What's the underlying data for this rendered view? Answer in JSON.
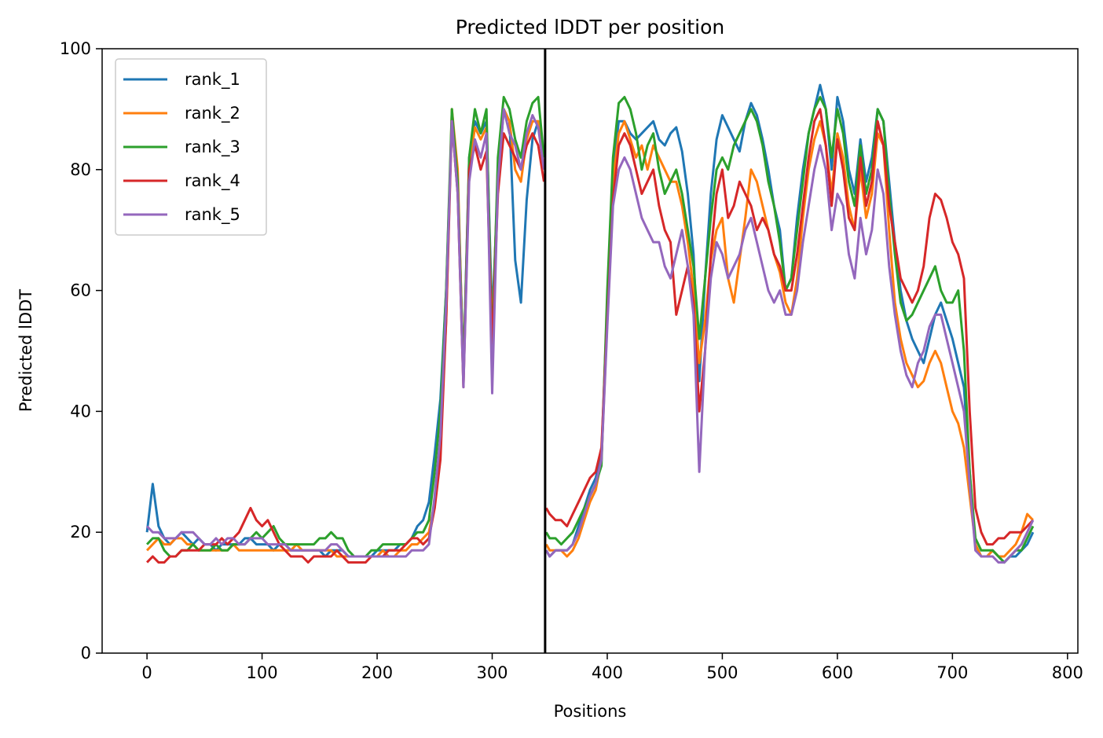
{
  "chart_data": {
    "type": "line",
    "title": "Predicted lDDT per position",
    "xlabel": "Positions",
    "ylabel": "Predicted lDDT",
    "xlim": [
      -39,
      809
    ],
    "ylim": [
      0,
      100
    ],
    "xticks": [
      0,
      100,
      200,
      300,
      400,
      500,
      600,
      700,
      800
    ],
    "yticks": [
      0,
      20,
      40,
      60,
      80,
      100
    ],
    "grid": false,
    "legend_position": "top-left",
    "vline_x": 346,
    "x": [
      0,
      5,
      10,
      15,
      20,
      25,
      30,
      35,
      40,
      45,
      50,
      55,
      60,
      65,
      70,
      75,
      80,
      85,
      90,
      95,
      100,
      105,
      110,
      115,
      120,
      125,
      130,
      135,
      140,
      145,
      150,
      155,
      160,
      165,
      170,
      175,
      180,
      185,
      190,
      195,
      200,
      205,
      210,
      215,
      220,
      225,
      230,
      235,
      240,
      245,
      250,
      255,
      260,
      265,
      270,
      275,
      280,
      285,
      290,
      295,
      300,
      305,
      310,
      315,
      320,
      325,
      330,
      335,
      340,
      345,
      347,
      350,
      355,
      360,
      365,
      370,
      375,
      380,
      385,
      390,
      395,
      400,
      405,
      410,
      415,
      420,
      425,
      430,
      435,
      440,
      445,
      450,
      455,
      460,
      465,
      470,
      475,
      480,
      485,
      490,
      495,
      500,
      505,
      510,
      515,
      520,
      525,
      530,
      535,
      540,
      545,
      550,
      555,
      560,
      565,
      570,
      575,
      580,
      585,
      590,
      595,
      600,
      605,
      610,
      615,
      620,
      625,
      630,
      635,
      640,
      645,
      650,
      655,
      660,
      665,
      670,
      675,
      680,
      685,
      690,
      695,
      700,
      705,
      710,
      715,
      720,
      725,
      730,
      735,
      740,
      745,
      750,
      755,
      760,
      765,
      770
    ],
    "series": [
      {
        "name": "rank_1",
        "color": "#1f77b4",
        "values": [
          20,
          28,
          21,
          19,
          18,
          19,
          20,
          19,
          18,
          19,
          18,
          18,
          17,
          18,
          18,
          18,
          18,
          19,
          19,
          18,
          18,
          18,
          17,
          18,
          18,
          17,
          17,
          17,
          17,
          17,
          17,
          16,
          17,
          17,
          17,
          16,
          16,
          16,
          16,
          16,
          17,
          17,
          17,
          17,
          18,
          18,
          19,
          21,
          22,
          25,
          33,
          42,
          60,
          88,
          78,
          47,
          82,
          88,
          86,
          88,
          55,
          78,
          90,
          88,
          65,
          58,
          75,
          85,
          88,
          80,
          17,
          16,
          17,
          17,
          17,
          18,
          21,
          24,
          27,
          29,
          33,
          58,
          80,
          88,
          88,
          86,
          85,
          86,
          87,
          88,
          85,
          84,
          86,
          87,
          83,
          76,
          66,
          45,
          62,
          76,
          85,
          89,
          87,
          85,
          83,
          88,
          91,
          89,
          85,
          80,
          74,
          70,
          60,
          62,
          72,
          80,
          86,
          90,
          94,
          90,
          80,
          92,
          88,
          80,
          76,
          85,
          78,
          82,
          90,
          88,
          78,
          68,
          60,
          55,
          52,
          50,
          48,
          52,
          56,
          58,
          55,
          52,
          48,
          44,
          30,
          18,
          16,
          16,
          17,
          16,
          15,
          16,
          16,
          17,
          18,
          20
        ]
      },
      {
        "name": "rank_2",
        "color": "#ff7f0e",
        "values": [
          17,
          18,
          19,
          18,
          18,
          19,
          19,
          18,
          18,
          17,
          17,
          17,
          17,
          17,
          17,
          18,
          17,
          17,
          17,
          17,
          17,
          17,
          17,
          17,
          17,
          17,
          18,
          17,
          17,
          17,
          17,
          17,
          17,
          16,
          16,
          16,
          16,
          16,
          16,
          16,
          16,
          17,
          16,
          16,
          17,
          17,
          18,
          18,
          19,
          20,
          25,
          35,
          55,
          90,
          80,
          46,
          80,
          87,
          85,
          87,
          52,
          80,
          90,
          88,
          80,
          78,
          85,
          88,
          88,
          80,
          18,
          17,
          17,
          17,
          16,
          17,
          19,
          22,
          25,
          27,
          32,
          55,
          78,
          86,
          88,
          85,
          82,
          84,
          80,
          84,
          82,
          80,
          78,
          78,
          74,
          68,
          60,
          48,
          55,
          65,
          70,
          72,
          62,
          58,
          65,
          72,
          80,
          78,
          74,
          70,
          66,
          63,
          58,
          56,
          62,
          72,
          80,
          85,
          88,
          84,
          76,
          86,
          82,
          74,
          70,
          80,
          72,
          76,
          86,
          84,
          70,
          58,
          52,
          48,
          46,
          44,
          45,
          48,
          50,
          48,
          44,
          40,
          38,
          34,
          26,
          18,
          16,
          16,
          17,
          16,
          16,
          17,
          18,
          20,
          23,
          22
        ]
      },
      {
        "name": "rank_3",
        "color": "#2ca02c",
        "values": [
          18,
          19,
          19,
          17,
          16,
          16,
          17,
          17,
          18,
          17,
          17,
          17,
          18,
          17,
          17,
          18,
          18,
          18,
          19,
          20,
          19,
          20,
          21,
          19,
          18,
          18,
          18,
          18,
          18,
          18,
          19,
          19,
          20,
          19,
          19,
          17,
          16,
          16,
          16,
          17,
          17,
          18,
          18,
          18,
          18,
          18,
          19,
          20,
          20,
          22,
          30,
          40,
          60,
          90,
          78,
          46,
          82,
          90,
          86,
          90,
          50,
          82,
          92,
          90,
          85,
          82,
          88,
          91,
          92,
          82,
          20,
          19,
          19,
          18,
          19,
          20,
          22,
          24,
          26,
          28,
          31,
          60,
          82,
          91,
          92,
          90,
          86,
          80,
          84,
          86,
          80,
          76,
          78,
          80,
          76,
          70,
          64,
          52,
          62,
          72,
          80,
          82,
          80,
          84,
          86,
          88,
          90,
          88,
          84,
          78,
          74,
          68,
          60,
          62,
          70,
          78,
          86,
          90,
          92,
          90,
          82,
          90,
          86,
          78,
          74,
          84,
          76,
          80,
          90,
          88,
          76,
          66,
          58,
          55,
          56,
          58,
          60,
          62,
          64,
          60,
          58,
          58,
          60,
          50,
          30,
          19,
          17,
          17,
          17,
          16,
          15,
          16,
          17,
          17,
          19,
          21
        ]
      },
      {
        "name": "rank_4",
        "color": "#d62728",
        "values": [
          15,
          16,
          15,
          15,
          16,
          16,
          17,
          17,
          17,
          17,
          18,
          18,
          18,
          19,
          18,
          19,
          20,
          22,
          24,
          22,
          21,
          22,
          20,
          18,
          17,
          16,
          16,
          16,
          15,
          16,
          16,
          16,
          16,
          17,
          16,
          15,
          15,
          15,
          15,
          16,
          16,
          16,
          17,
          17,
          17,
          18,
          19,
          19,
          18,
          19,
          24,
          32,
          55,
          88,
          76,
          44,
          80,
          84,
          80,
          83,
          50,
          76,
          86,
          84,
          82,
          80,
          84,
          86,
          84,
          78,
          24,
          23,
          22,
          22,
          21,
          23,
          25,
          27,
          29,
          30,
          34,
          55,
          75,
          84,
          86,
          84,
          80,
          76,
          78,
          80,
          74,
          70,
          68,
          56,
          60,
          64,
          58,
          40,
          50,
          66,
          76,
          80,
          72,
          74,
          78,
          76,
          74,
          70,
          72,
          70,
          66,
          64,
          60,
          60,
          66,
          74,
          82,
          88,
          90,
          84,
          74,
          85,
          80,
          72,
          70,
          82,
          74,
          78,
          88,
          84,
          74,
          68,
          62,
          60,
          58,
          60,
          64,
          72,
          76,
          75,
          72,
          68,
          66,
          62,
          40,
          24,
          20,
          18,
          18,
          19,
          19,
          20,
          20,
          20,
          21,
          22
        ]
      },
      {
        "name": "rank_5",
        "color": "#9467bd",
        "values": [
          21,
          20,
          20,
          19,
          19,
          19,
          20,
          20,
          20,
          19,
          18,
          18,
          19,
          18,
          19,
          19,
          18,
          18,
          19,
          19,
          19,
          18,
          18,
          18,
          18,
          17,
          17,
          17,
          17,
          17,
          17,
          17,
          18,
          18,
          17,
          16,
          16,
          16,
          16,
          16,
          16,
          16,
          16,
          16,
          16,
          16,
          17,
          17,
          17,
          18,
          26,
          36,
          58,
          88,
          76,
          44,
          78,
          85,
          82,
          86,
          43,
          78,
          90,
          86,
          84,
          80,
          86,
          89,
          87,
          80,
          17,
          16,
          17,
          17,
          17,
          18,
          20,
          23,
          26,
          28,
          32,
          54,
          74,
          80,
          82,
          80,
          76,
          72,
          70,
          68,
          68,
          64,
          62,
          66,
          70,
          64,
          56,
          30,
          50,
          62,
          68,
          66,
          62,
          64,
          66,
          70,
          72,
          68,
          64,
          60,
          58,
          60,
          56,
          56,
          60,
          68,
          74,
          80,
          84,
          80,
          70,
          76,
          74,
          66,
          62,
          72,
          66,
          70,
          80,
          76,
          64,
          56,
          50,
          46,
          44,
          48,
          50,
          54,
          56,
          56,
          52,
          48,
          44,
          40,
          28,
          17,
          16,
          16,
          16,
          15,
          15,
          16,
          17,
          18,
          20,
          22
        ]
      }
    ]
  }
}
